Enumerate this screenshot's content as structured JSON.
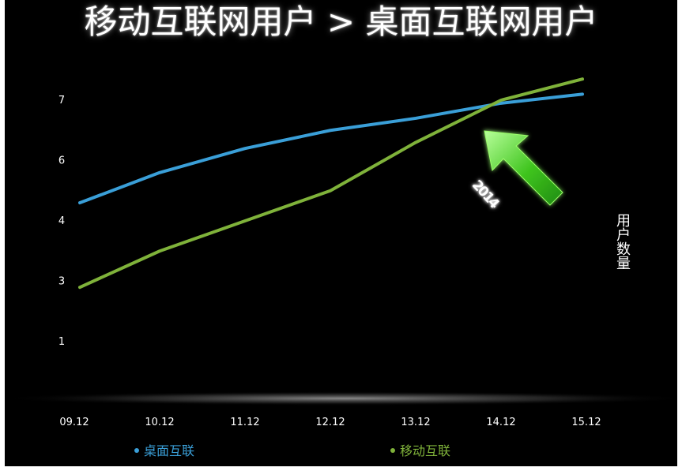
{
  "title": "移动互联网用户 > 桌面互联网用户",
  "ylabel": "用户数量",
  "annotation": "2014",
  "colors": {
    "desktop": "#3a9fd8",
    "mobile": "#7fb23a",
    "arrow": "#4fd82a",
    "background": "#000000"
  },
  "chart_data": {
    "type": "line",
    "categories": [
      "09.12",
      "10.12",
      "11.12",
      "12.12",
      "13.12",
      "14.12",
      "15.12"
    ],
    "ytick_labels": [
      "1",
      "3",
      "4",
      "6",
      "7"
    ],
    "ytick_values": [
      1,
      2,
      3,
      4,
      5
    ],
    "ylim": [
      0.4,
      5.4
    ],
    "grid": false,
    "legend": "bottom",
    "series": [
      {
        "name": "桌面互联",
        "values": [
          3.3,
          3.8,
          4.2,
          4.5,
          4.7,
          4.95,
          5.1
        ],
        "color": "#3a9fd8"
      },
      {
        "name": "移动互联",
        "values": [
          1.9,
          2.5,
          3.0,
          3.5,
          4.3,
          5.0,
          5.35
        ],
        "color": "#7fb23a"
      }
    ]
  }
}
